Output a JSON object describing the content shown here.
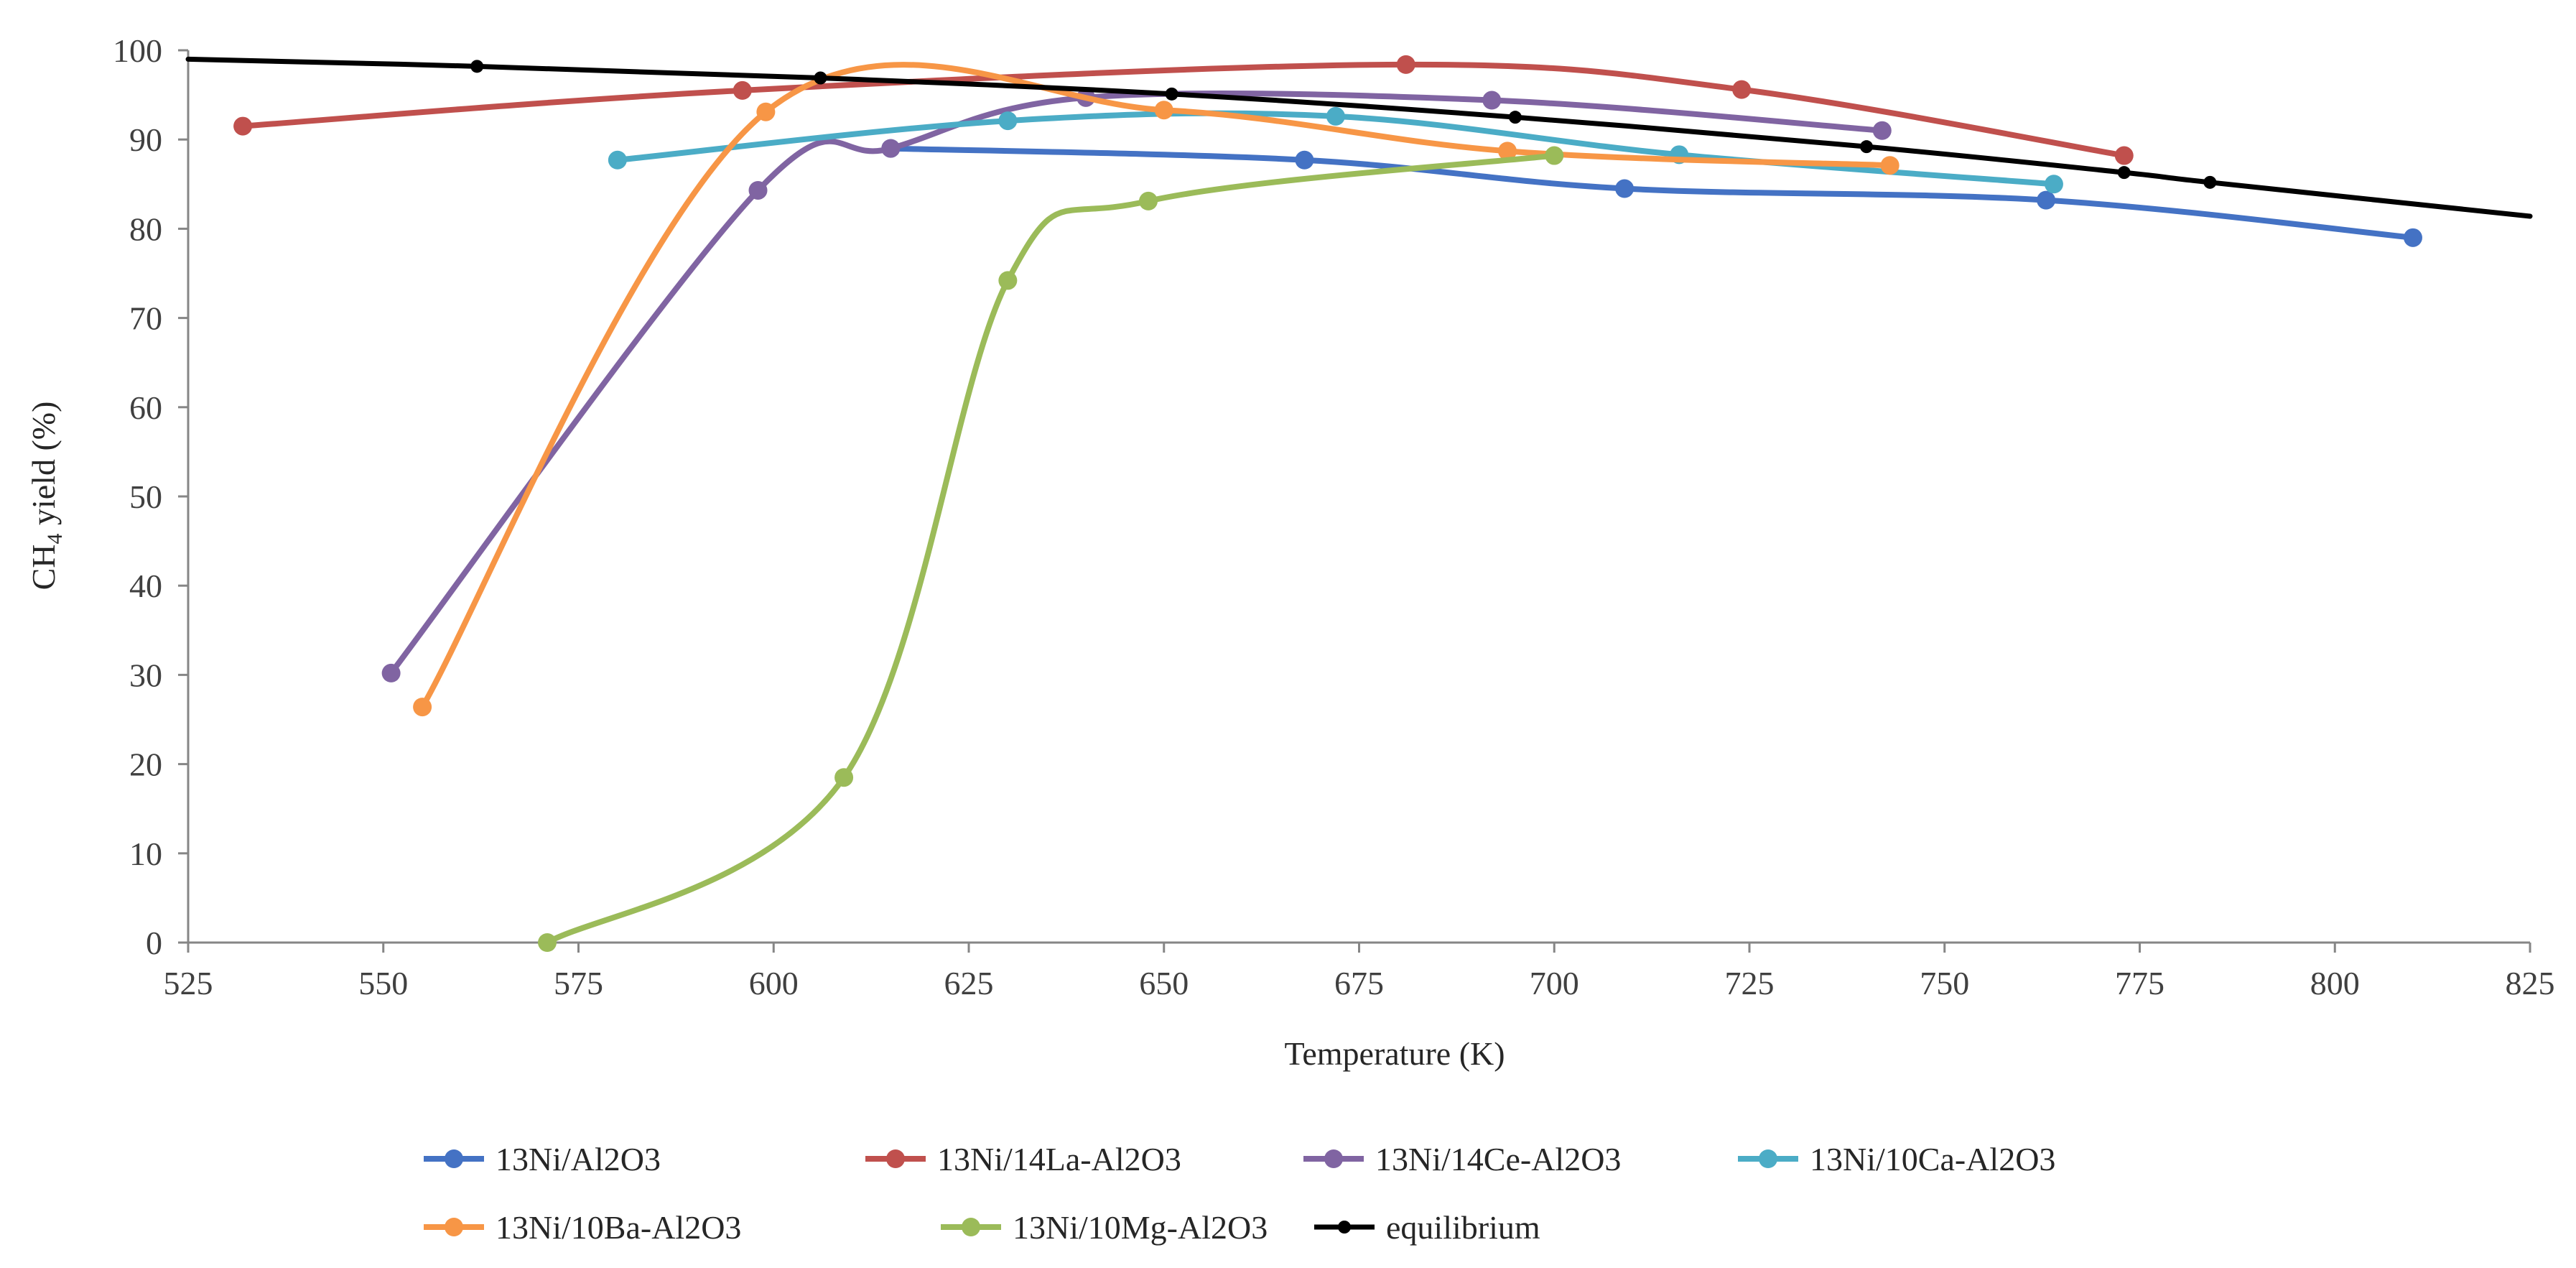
{
  "chart_data": {
    "type": "scatter",
    "title": "",
    "xlabel": "Temperature (K)",
    "ylabel": "CH4 yield (%)",
    "ylabel_main": "CH",
    "ylabel_sub": "4",
    "ylabel_rest": " yield (%)",
    "xlim": [
      525,
      825
    ],
    "ylim": [
      0,
      100
    ],
    "xticks": [
      525,
      550,
      575,
      600,
      625,
      650,
      675,
      700,
      725,
      750,
      775,
      800,
      825
    ],
    "yticks": [
      0,
      10,
      20,
      30,
      40,
      50,
      60,
      70,
      80,
      90,
      100
    ],
    "grid": false,
    "legend_position": "bottom",
    "series": [
      {
        "name": "13Ni/Al2O3",
        "legend_label": "13Ni/Al2O3",
        "color": "#4472C4",
        "style": "smooth-line-markers",
        "x": [
          615,
          668,
          709,
          763,
          810
        ],
        "y": [
          89,
          87.7,
          84.5,
          83.2,
          79
        ]
      },
      {
        "name": "13Ni/14La-Al2O3",
        "legend_label": "13Ni/14La-Al2O3",
        "color": "#C0504D",
        "style": "smooth-line-markers",
        "x": [
          532,
          596,
          681,
          724,
          773
        ],
        "y": [
          91.5,
          95.5,
          98.4,
          95.6,
          88.2
        ]
      },
      {
        "name": "13Ni/14Ce-Al2O3",
        "legend_label": "13Ni/14Ce-Al2O3",
        "color": "#8064A2",
        "style": "smooth-line-markers",
        "x": [
          551,
          598,
          615,
          640,
          692,
          742
        ],
        "y": [
          30.2,
          84.3,
          89,
          94.7,
          94.4,
          91
        ]
      },
      {
        "name": "13Ni/10Ca-Al2O3",
        "legend_label": "13Ni/10Ca-Al2O3",
        "color": "#4BACC6",
        "style": "smooth-line-markers",
        "x": [
          580,
          630,
          672,
          716,
          764
        ],
        "y": [
          87.7,
          92.1,
          92.6,
          88.3,
          85
        ]
      },
      {
        "name": "13Ni/10Ba-Al2O3",
        "legend_label": "13Ni/10Ba-Al2O3",
        "color": "#F79646",
        "style": "smooth-line-markers",
        "x": [
          555,
          599,
          650,
          694,
          743
        ],
        "y": [
          26.4,
          93.1,
          93.3,
          88.7,
          87.1
        ]
      },
      {
        "name": "13Ni/10Mg-Al2O3",
        "legend_label": "13Ni/10Mg-Al2O3",
        "color": "#9BBB59",
        "style": "smooth-line-markers",
        "x": [
          571,
          609,
          630,
          648,
          700
        ],
        "y": [
          0,
          18.5,
          74.2,
          83.1,
          88.2
        ]
      },
      {
        "name": "equilibrium",
        "legend_label": "equilibrium",
        "color": "#000000",
        "style": "smooth-line-small-markers",
        "x": [
          525,
          562,
          606,
          651,
          695,
          740,
          773,
          784,
          825
        ],
        "y": [
          99,
          98.2,
          96.9,
          95.1,
          92.5,
          89.2,
          86.3,
          85.2,
          81.4
        ],
        "marker_x": [
          562,
          606,
          651,
          695,
          740,
          773,
          784
        ]
      }
    ]
  }
}
